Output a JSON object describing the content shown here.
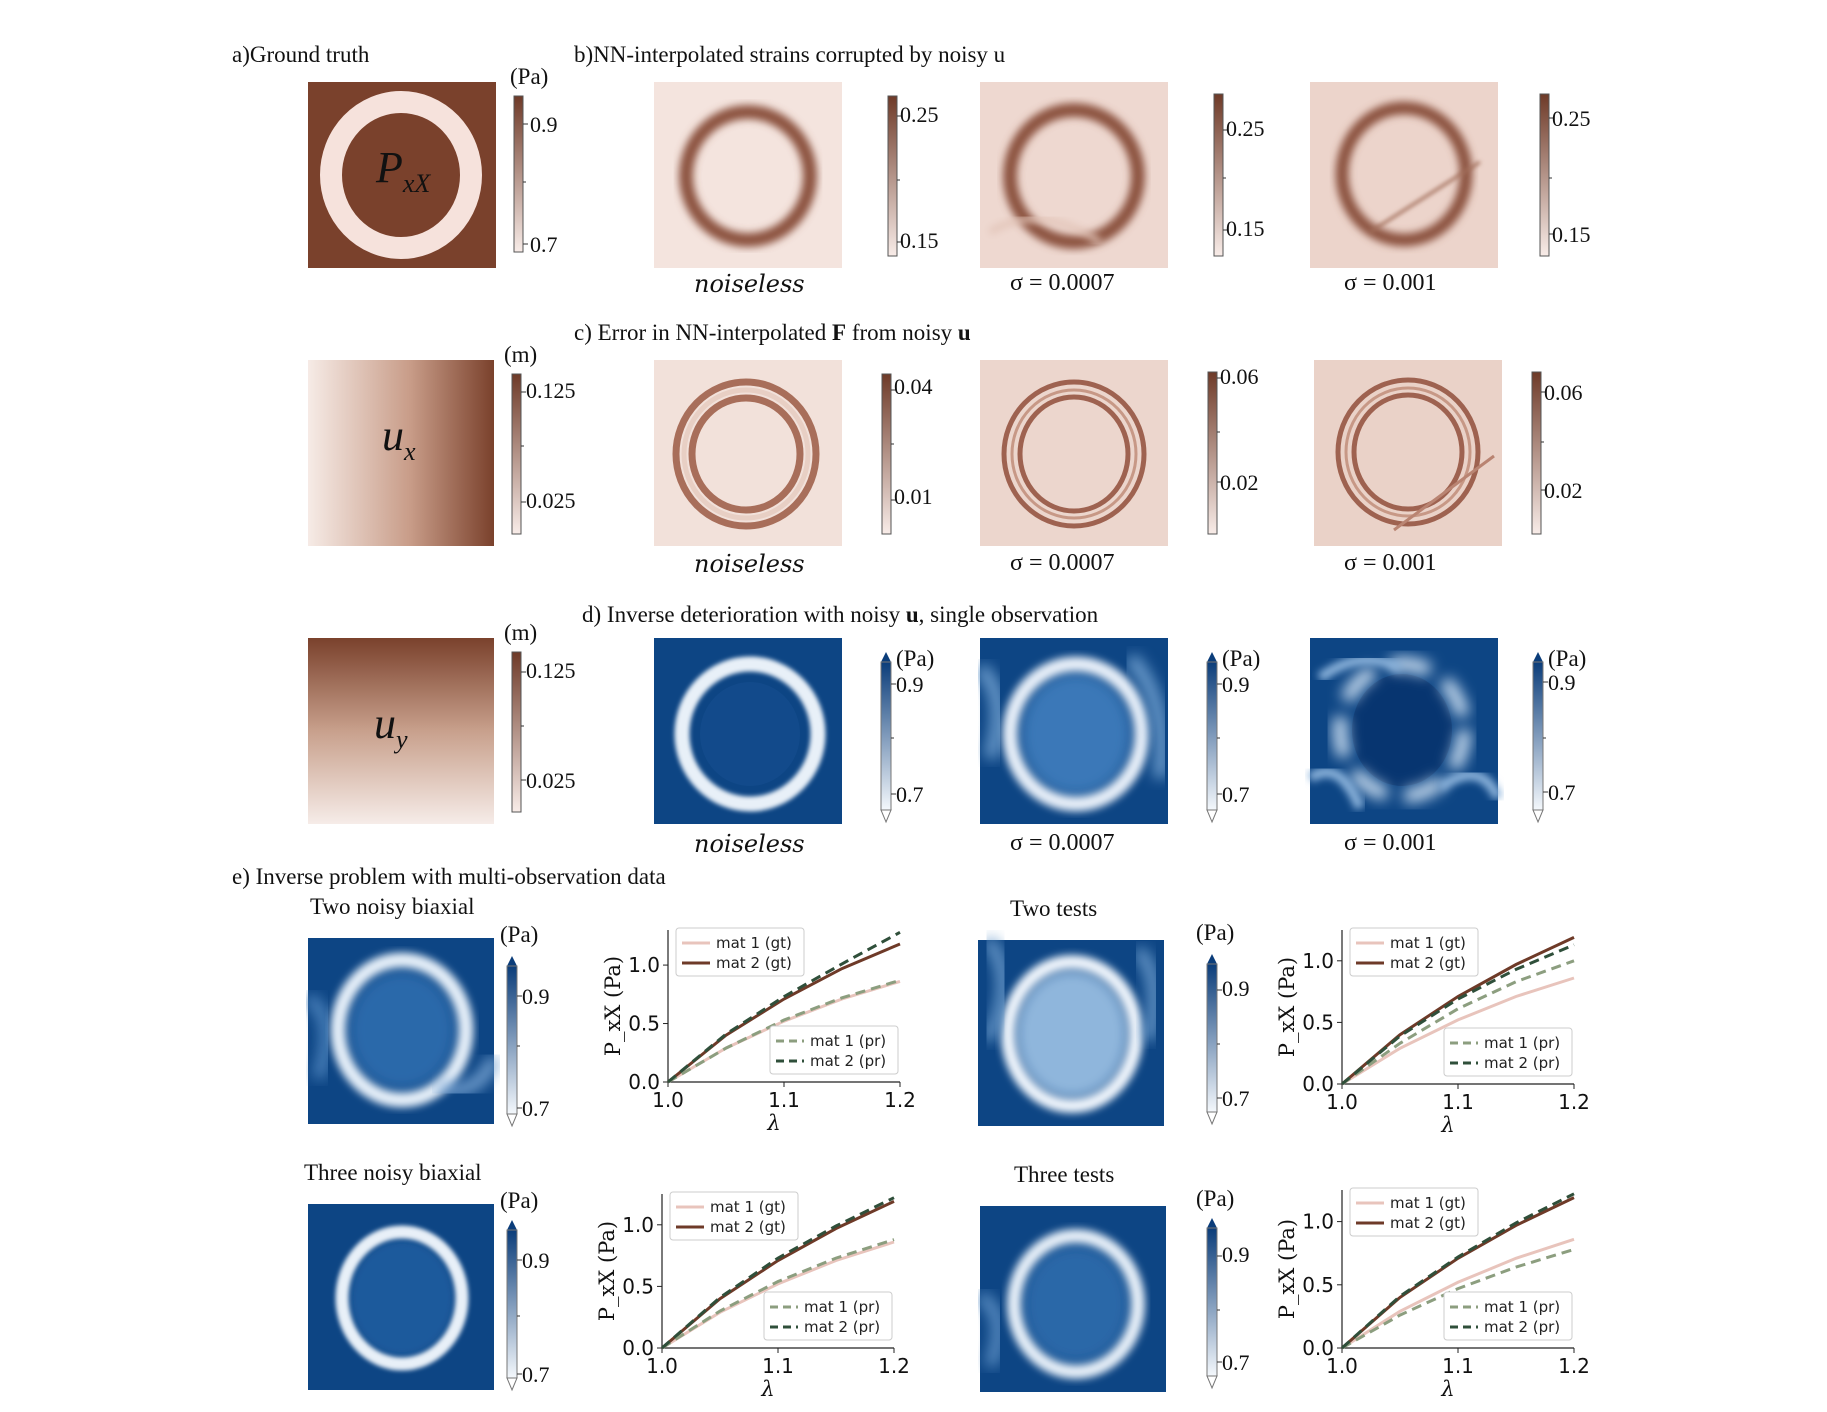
{
  "panels": {
    "a": {
      "letter": "a)",
      "title": "Ground truth"
    },
    "b": {
      "letter": "b)",
      "title": "NN-interpolated strains corrupted by noisy u"
    },
    "c": {
      "letter": "c)",
      "title_pre": "Error in NN-interpolated ",
      "title_bold1": "F",
      "title_mid": " from noisy ",
      "title_bold2": "u"
    },
    "d": {
      "letter": "d)",
      "title_pre": "Inverse deterioration with noisy ",
      "title_bold": "u",
      "title_post": ", single observation"
    },
    "e": {
      "letter": "e)",
      "title": "Inverse problem with multi-observation data"
    }
  },
  "ground_truth": [
    {
      "var": "P",
      "sub": "xX",
      "unit": "(Pa)",
      "ticks": [
        "0.9",
        "0.7"
      ]
    },
    {
      "var": "u",
      "sub": "x",
      "unit": "(m)",
      "ticks": [
        "0.125",
        "0.025"
      ]
    },
    {
      "var": "u",
      "sub": "y",
      "unit": "(m)",
      "ticks": [
        "0.125",
        "0.025"
      ]
    }
  ],
  "columns": [
    "noiseless",
    "σ = 0.0007",
    "σ = 0.001"
  ],
  "row_b_ticks": [
    [
      "0.25",
      "0.15"
    ],
    [
      "0.25",
      "0.15"
    ],
    [
      "0.25",
      "0.15"
    ]
  ],
  "row_c_ticks": [
    [
      "0.04",
      "0.01"
    ],
    [
      "0.06",
      "0.02"
    ],
    [
      "0.06",
      "0.02"
    ]
  ],
  "row_d": {
    "unit": "(Pa)",
    "ticks": [
      "0.9",
      "0.7"
    ]
  },
  "multi": [
    {
      "title": "Two noisy biaxial",
      "unit": "(Pa)",
      "ticks": [
        "0.9",
        "0.7"
      ]
    },
    {
      "title": "Two tests",
      "unit": "(Pa)",
      "ticks": [
        "0.9",
        "0.7"
      ]
    },
    {
      "title": "Three noisy biaxial",
      "unit": "(Pa)",
      "ticks": [
        "0.9",
        "0.7"
      ]
    },
    {
      "title": "Three tests",
      "unit": "(Pa)",
      "ticks": [
        "0.9",
        "0.7"
      ]
    }
  ],
  "chart_data": [
    {
      "type": "line",
      "xlabel": "λ",
      "ylabel": "P_xX (Pa)",
      "xlim": [
        1.0,
        1.2
      ],
      "ylim": [
        0.0,
        1.3
      ],
      "xticks": [
        "1.0",
        "1.1",
        "1.2"
      ],
      "yticks": [
        "0.0",
        "0.5",
        "1.0"
      ],
      "legend_top": [
        "mat 1 (gt)",
        "mat 2 (gt)"
      ],
      "legend_bottom": [
        "mat 1 (pr)",
        "mat 2 (pr)"
      ],
      "x": [
        1.0,
        1.05,
        1.1,
        1.15,
        1.2
      ],
      "series": [
        {
          "name": "mat 1 (gt)",
          "values": [
            0.0,
            0.29,
            0.52,
            0.71,
            0.86
          ],
          "color": "#e8c4bc",
          "dash": false
        },
        {
          "name": "mat 2 (gt)",
          "values": [
            0.0,
            0.4,
            0.71,
            0.97,
            1.18
          ],
          "color": "#6e3a28",
          "dash": false
        },
        {
          "name": "mat 1 (pr)",
          "values": [
            0.0,
            0.29,
            0.53,
            0.72,
            0.87
          ],
          "color": "#8c9e7f",
          "dash": true
        },
        {
          "name": "mat 2 (pr)",
          "values": [
            0.0,
            0.41,
            0.73,
            1.01,
            1.28
          ],
          "color": "#2f4f3a",
          "dash": true
        }
      ]
    },
    {
      "type": "line",
      "xlabel": "λ",
      "ylabel": "P_xX (Pa)",
      "xlim": [
        1.0,
        1.2
      ],
      "ylim": [
        0.0,
        1.25
      ],
      "xticks": [
        "1.0",
        "1.1",
        "1.2"
      ],
      "yticks": [
        "0.0",
        "0.5",
        "1.0"
      ],
      "legend_top": [
        "mat 1 (gt)",
        "mat 2 (gt)"
      ],
      "legend_bottom": [
        "mat 1 (pr)",
        "mat 2 (pr)"
      ],
      "x": [
        1.0,
        1.05,
        1.1,
        1.15,
        1.2
      ],
      "series": [
        {
          "name": "mat 1 (gt)",
          "values": [
            0.0,
            0.29,
            0.52,
            0.71,
            0.86
          ],
          "color": "#e8c4bc",
          "dash": false
        },
        {
          "name": "mat 2 (gt)",
          "values": [
            0.0,
            0.4,
            0.71,
            0.97,
            1.19
          ],
          "color": "#6e3a28",
          "dash": false
        },
        {
          "name": "mat 1 (pr)",
          "values": [
            0.0,
            0.33,
            0.61,
            0.83,
            1.0
          ],
          "color": "#8c9e7f",
          "dash": true
        },
        {
          "name": "mat 2 (pr)",
          "values": [
            0.0,
            0.39,
            0.69,
            0.93,
            1.13
          ],
          "color": "#2f4f3a",
          "dash": true
        }
      ]
    },
    {
      "type": "line",
      "xlabel": "λ",
      "ylabel": "P_xX (Pa)",
      "xlim": [
        1.0,
        1.2
      ],
      "ylim": [
        0.0,
        1.25
      ],
      "xticks": [
        "1.0",
        "1.1",
        "1.2"
      ],
      "yticks": [
        "0.0",
        "0.5",
        "1.0"
      ],
      "legend_top": [
        "mat 1 (gt)",
        "mat 2 (gt)"
      ],
      "legend_bottom": [
        "mat 1 (pr)",
        "mat 2 (pr)"
      ],
      "x": [
        1.0,
        1.05,
        1.1,
        1.15,
        1.2
      ],
      "series": [
        {
          "name": "mat 1 (gt)",
          "values": [
            0.0,
            0.29,
            0.52,
            0.71,
            0.86
          ],
          "color": "#e8c4bc",
          "dash": false
        },
        {
          "name": "mat 2 (gt)",
          "values": [
            0.0,
            0.4,
            0.71,
            0.97,
            1.19
          ],
          "color": "#6e3a28",
          "dash": false
        },
        {
          "name": "mat 1 (pr)",
          "values": [
            0.0,
            0.3,
            0.54,
            0.73,
            0.88
          ],
          "color": "#8c9e7f",
          "dash": true
        },
        {
          "name": "mat 2 (pr)",
          "values": [
            0.0,
            0.41,
            0.73,
            0.99,
            1.22
          ],
          "color": "#2f4f3a",
          "dash": true
        }
      ]
    },
    {
      "type": "line",
      "xlabel": "λ",
      "ylabel": "P_xX (Pa)",
      "xlim": [
        1.0,
        1.2
      ],
      "ylim": [
        0.0,
        1.25
      ],
      "xticks": [
        "1.0",
        "1.1",
        "1.2"
      ],
      "yticks": [
        "0.0",
        "0.5",
        "1.0"
      ],
      "legend_top": [
        "mat 1 (gt)",
        "mat 2 (gt)"
      ],
      "legend_bottom": [
        "mat 1 (pr)",
        "mat 2 (pr)"
      ],
      "x": [
        1.0,
        1.05,
        1.1,
        1.15,
        1.2
      ],
      "series": [
        {
          "name": "mat 1 (gt)",
          "values": [
            0.0,
            0.29,
            0.52,
            0.71,
            0.86
          ],
          "color": "#e8c4bc",
          "dash": false
        },
        {
          "name": "mat 2 (gt)",
          "values": [
            0.0,
            0.4,
            0.71,
            0.97,
            1.19
          ],
          "color": "#6e3a28",
          "dash": false
        },
        {
          "name": "mat 1 (pr)",
          "values": [
            0.0,
            0.26,
            0.47,
            0.64,
            0.78
          ],
          "color": "#8c9e7f",
          "dash": true
        },
        {
          "name": "mat 2 (pr)",
          "values": [
            0.0,
            0.41,
            0.72,
            0.99,
            1.22
          ],
          "color": "#2f4f3a",
          "dash": true
        }
      ]
    }
  ]
}
